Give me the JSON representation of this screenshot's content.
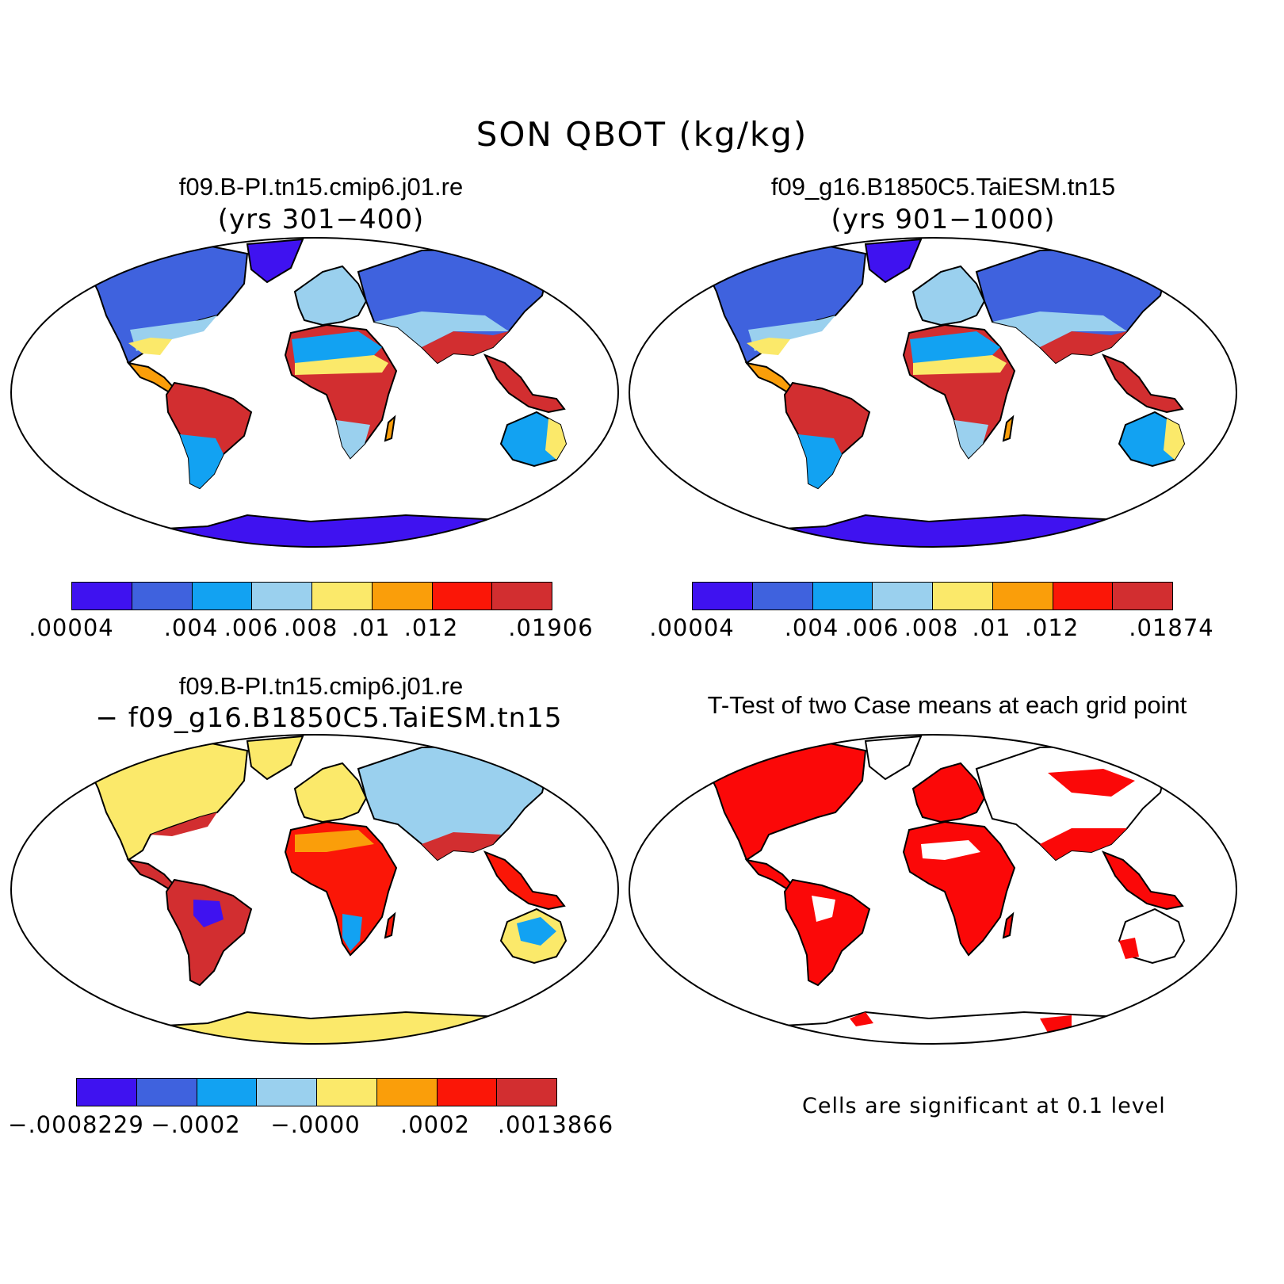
{
  "main_title": "SON QBOT (kg/kg)",
  "colors": {
    "blue_dark": "#3f12f0",
    "blue": "#3f62de",
    "sky": "#12a2f2",
    "light_blue": "#9ad0ee",
    "yellow": "#fbe96a",
    "orange": "#fa9e0a",
    "red": "#fb1607",
    "dark_red": "#d22e30",
    "sig_red": "#fb0808"
  },
  "panels": [
    {
      "id": "case1",
      "title": "f09.B-PI.tn15.cmip6.j01.re",
      "subtitle": "(yrs 301−400)",
      "colorbar": {
        "colors": [
          "#3f12f0",
          "#3f62de",
          "#12a2f2",
          "#9ad0ee",
          "#fbe96a",
          "#fa9e0a",
          "#fb1607",
          "#d22e30"
        ],
        "labels": [
          ".00004",
          ".004",
          ".006",
          ".008",
          ".01",
          ".012",
          ".01906"
        ]
      }
    },
    {
      "id": "case2",
      "title": "f09_g16.B1850C5.TaiESM.tn15",
      "subtitle": "(yrs 901−1000)",
      "colorbar": {
        "colors": [
          "#3f12f0",
          "#3f62de",
          "#12a2f2",
          "#9ad0ee",
          "#fbe96a",
          "#fa9e0a",
          "#fb1607",
          "#d22e30"
        ],
        "labels": [
          ".00004",
          ".004",
          ".006",
          ".008",
          ".01",
          ".012",
          ".01874"
        ]
      }
    },
    {
      "id": "diff",
      "title": "f09.B-PI.tn15.cmip6.j01.re",
      "subtitle": "− f09_g16.B1850C5.TaiESM.tn15",
      "colorbar": {
        "colors": [
          "#3f12f0",
          "#3f62de",
          "#12a2f2",
          "#9ad0ee",
          "#fbe96a",
          "#fa9e0a",
          "#fb1607",
          "#d22e30"
        ],
        "labels": [
          "−.0008229",
          "−.0002",
          "−.0000",
          ".0002",
          ".0013866"
        ]
      }
    },
    {
      "id": "ttest",
      "title": "T-Test of two Case means at each grid point",
      "note": "Cells are significant at 0.1 level"
    }
  ]
}
